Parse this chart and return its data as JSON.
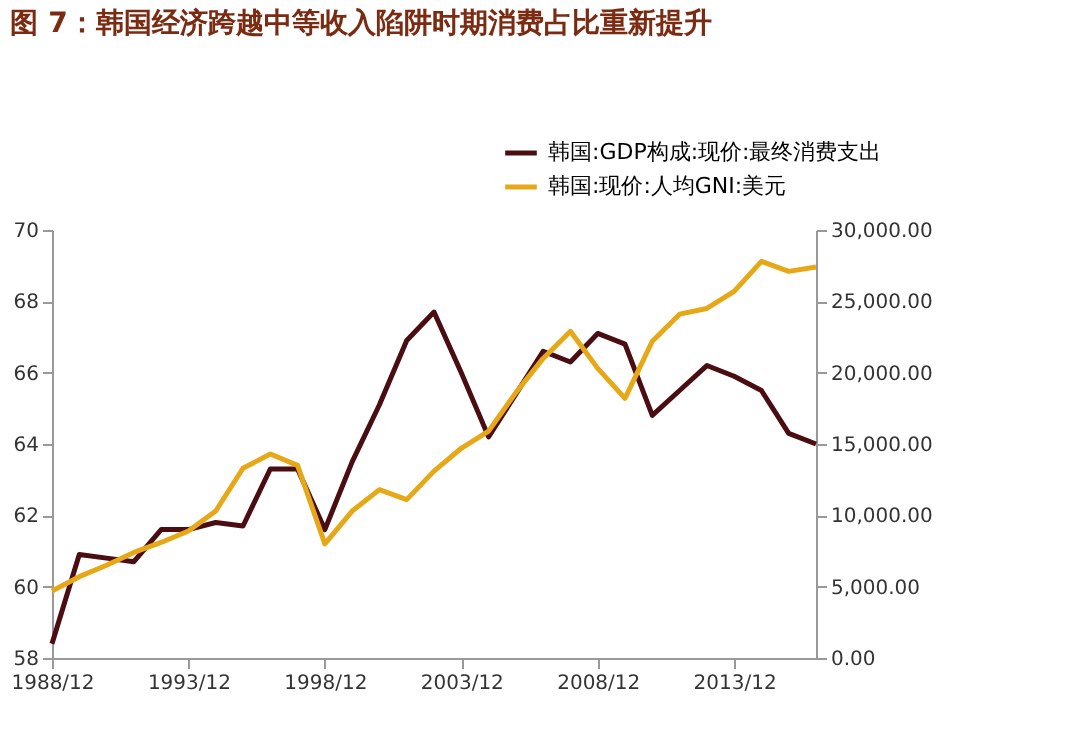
{
  "chart_data": {
    "type": "line",
    "title": "图 7：韩国经济跨越中等收入陷阱时期消费占比重新提升",
    "categories": [
      "1988/12",
      null,
      null,
      null,
      null,
      "1993/12",
      null,
      null,
      null,
      null,
      "1998/12",
      null,
      null,
      null,
      null,
      "2003/12",
      null,
      null,
      null,
      null,
      "2008/12",
      null,
      null,
      null,
      null,
      "2013/12",
      null,
      null,
      null
    ],
    "series": [
      {
        "name": "韩国:GDP构成:现价:最终消费支出",
        "color": "#4a0e12",
        "values": [
          58.4,
          60.9,
          60.8,
          60.7,
          61.6,
          61.6,
          61.8,
          61.7,
          63.3,
          63.3,
          61.6,
          63.5,
          65.1,
          66.9,
          67.7,
          66.0,
          64.2,
          65.4,
          66.6,
          66.3,
          67.1,
          66.8,
          64.8,
          65.5,
          66.2,
          65.9,
          65.5,
          64.3,
          64.0
        ]
      },
      {
        "name": "韩国:现价:人均GNI:美元",
        "color": "#e6a817",
        "axis": "y2",
        "values": [
          4700,
          5700,
          6500,
          7400,
          8100,
          8900,
          10300,
          13300,
          14300,
          13500,
          8000,
          10300,
          11800,
          11100,
          13100,
          14700,
          15900,
          18600,
          21000,
          22900,
          20300,
          18200,
          22200,
          24100,
          24500,
          25700,
          27800,
          27100,
          27400
        ]
      }
    ],
    "ylim": [
      58,
      70
    ],
    "yticks": [
      58,
      60,
      62,
      64,
      66,
      68,
      70
    ],
    "y2lim": [
      0,
      30000
    ],
    "y2ticks": [
      {
        "value": 0,
        "label": "0.00"
      },
      {
        "value": 5000,
        "label": "5,000.00"
      },
      {
        "value": 10000,
        "label": "10,000.00"
      },
      {
        "value": 15000,
        "label": "15,000.00"
      },
      {
        "value": 20000,
        "label": "20,000.00"
      },
      {
        "value": 25000,
        "label": "25,000.00"
      },
      {
        "value": 30000,
        "label": "30,000.00"
      }
    ],
    "legend": "top right",
    "grid": false,
    "marker": "none",
    "line_style": "solid"
  }
}
